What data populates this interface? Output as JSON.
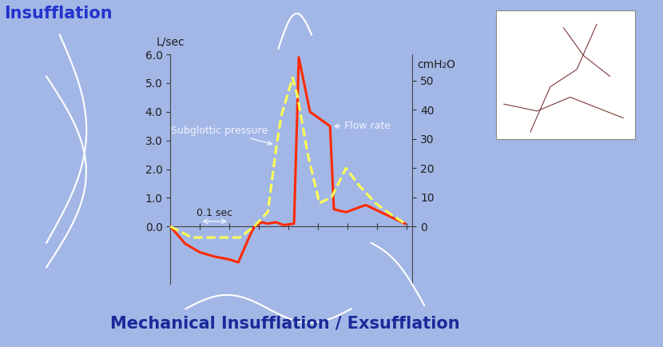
{
  "chart_data": {
    "type": "line",
    "y_label": "L/sec",
    "y2_label": "cmH₂O",
    "annotations": [
      "Insufflation",
      "Mechanical Insufflation / Exsufflation",
      "0.1 sec"
    ],
    "xlim": [
      0,
      0.82
    ],
    "xticks": [
      0,
      0.1,
      0.2,
      0.3,
      0.4,
      0.5,
      0.6,
      0.7,
      0.8
    ],
    "ylim": [
      -2.0,
      6.0
    ],
    "yticks": [
      {
        "value": 0,
        "label": "0.0"
      },
      {
        "value": 1,
        "label": "1.0"
      },
      {
        "value": 2,
        "label": "2.0"
      },
      {
        "value": 3,
        "label": "3.0"
      },
      {
        "value": 4,
        "label": "4.0"
      },
      {
        "value": 5,
        "label": "5.0"
      },
      {
        "value": 6,
        "label": "6.0"
      }
    ],
    "y2lim": [
      -19.7,
      59.0
    ],
    "y2ticks": [
      0,
      10,
      20,
      30,
      40,
      50
    ],
    "tick_labels": "y",
    "grid": false,
    "series": [
      {
        "name": "Flow rate",
        "color": "#ff2a00",
        "line_style": "solid",
        "x": [
          0,
          0.05,
          0.1,
          0.15,
          0.2,
          0.23,
          0.27,
          0.285,
          0.31,
          0.33,
          0.357,
          0.384,
          0.419,
          0.435,
          0.473,
          0.541,
          0.554,
          0.595,
          0.662,
          0.795
        ],
        "values": [
          0,
          -0.6,
          -0.9,
          -1.05,
          -1.15,
          -1.25,
          -0.3,
          0.0,
          0.15,
          0.1,
          0.15,
          0.05,
          0.1,
          5.9,
          4.0,
          3.5,
          0.6,
          0.5,
          0.75,
          0.1
        ]
      },
      {
        "name": "Subglottic pressure",
        "color": "#ffff55",
        "line_style": "dashed",
        "axis": "y2",
        "x": [
          0,
          0.073,
          0.235,
          0.284,
          0.33,
          0.36,
          0.376,
          0.414,
          0.43,
          0.465,
          0.505,
          0.546,
          0.595,
          0.64,
          0.695,
          0.749,
          0.795
        ],
        "values": [
          0,
          -3.8,
          -3.8,
          0,
          5,
          28,
          38,
          51,
          45,
          25,
          8,
          10,
          20,
          14,
          8,
          4,
          1
        ]
      }
    ]
  }
}
